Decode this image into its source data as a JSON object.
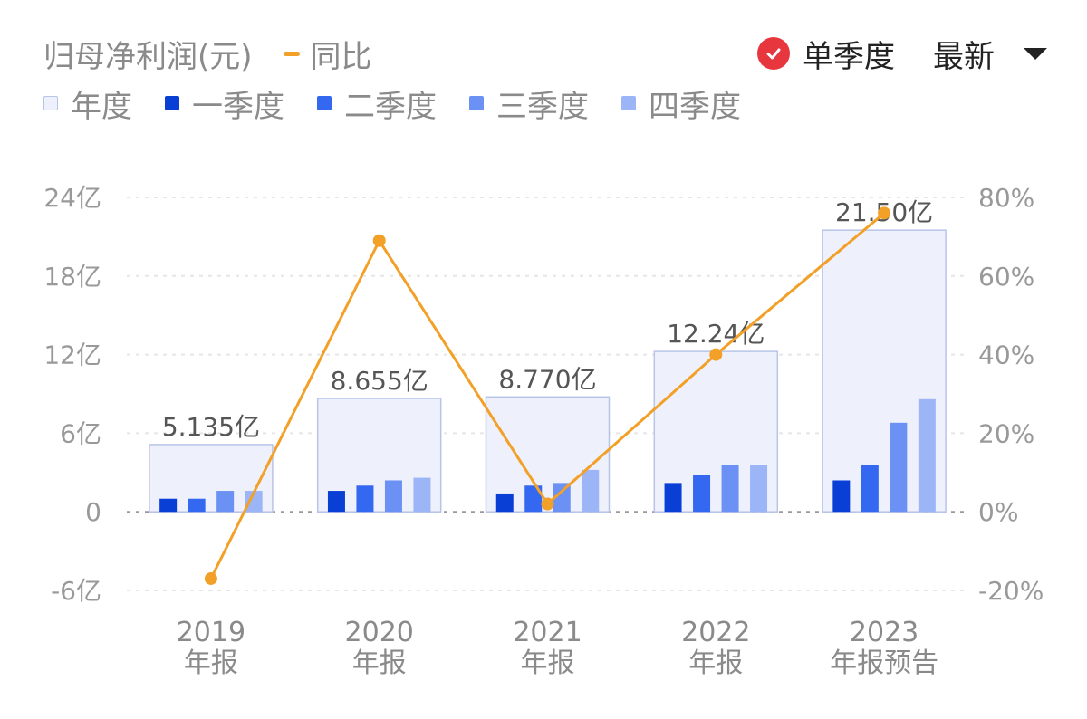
{
  "header": {
    "title": "归母净利润(元)",
    "yoy_label": "同比",
    "single_quarter_label": "单季度",
    "sort_label": "最新"
  },
  "legend": [
    {
      "label": "年度",
      "color": "#eef0fb",
      "border": "#b8c4e8"
    },
    {
      "label": "一季度",
      "color": "#0a3fd6"
    },
    {
      "label": "二季度",
      "color": "#3468f0"
    },
    {
      "label": "三季度",
      "color": "#6a91f3"
    },
    {
      "label": "四季度",
      "color": "#9bb5f7"
    }
  ],
  "colors": {
    "yoy_line": "#f2a027",
    "annual_fill": "#eef0fb",
    "annual_border": "#b8c4e8",
    "grid": "#e6e6e6",
    "zero_line": "#999999",
    "check": "#e8363e"
  },
  "chart_data": {
    "type": "bar",
    "categories": [
      {
        "year": "2019",
        "label": "年报"
      },
      {
        "year": "2020",
        "label": "年报"
      },
      {
        "year": "2021",
        "label": "年报"
      },
      {
        "year": "2022",
        "label": "年报"
      },
      {
        "year": "2023",
        "label": "年报预告"
      }
    ],
    "annual": {
      "values": [
        5.135,
        8.655,
        8.77,
        12.24,
        21.5
      ],
      "labels": [
        "5.135亿",
        "8.655亿",
        "8.770亿",
        "12.24亿",
        "21.50亿"
      ]
    },
    "series": [
      {
        "name": "一季度",
        "values": [
          1.0,
          1.6,
          1.4,
          2.2,
          2.4
        ]
      },
      {
        "name": "二季度",
        "values": [
          1.0,
          2.0,
          2.0,
          2.8,
          3.6
        ]
      },
      {
        "name": "三季度",
        "values": [
          1.6,
          2.4,
          2.2,
          3.6,
          6.8
        ]
      },
      {
        "name": "四季度",
        "values": [
          1.6,
          2.6,
          3.2,
          3.6,
          8.6
        ]
      }
    ],
    "yoy": {
      "name": "同比",
      "values": [
        -17,
        69,
        2,
        40,
        76
      ]
    },
    "y_left": {
      "min": -6,
      "max": 24,
      "ticks": [
        24,
        18,
        12,
        6,
        0,
        -6
      ],
      "tick_labels": [
        "24亿",
        "18亿",
        "12亿",
        "6亿",
        "0",
        "-6亿"
      ]
    },
    "y_right": {
      "min": -20,
      "max": 80,
      "ticks": [
        80,
        60,
        40,
        20,
        0,
        -20
      ],
      "tick_labels": [
        "80%",
        "60%",
        "40%",
        "20%",
        "0%",
        "-20%"
      ]
    },
    "grid": true
  }
}
